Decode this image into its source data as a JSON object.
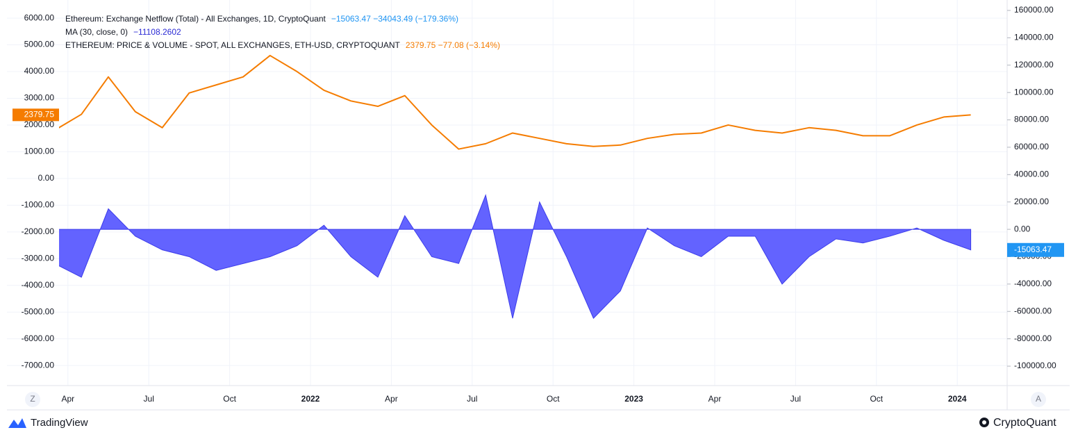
{
  "chart_data": {
    "type": "line-area",
    "series": [
      {
        "name": "Ethereum: Exchange Netflow (Total) - All Exchanges, 1D, CryptoQuant",
        "legend_stats": "−15063.47  −34043.49 (−179.36%)",
        "stats_color": "#2196f3",
        "color": "#5b5bff",
        "kind": "area",
        "axis": "y2",
        "values": [
          -25000,
          -35000,
          15000,
          -5000,
          -15000,
          -20000,
          -30000,
          -25000,
          -20000,
          -12000,
          3000,
          -20000,
          -35000,
          10000,
          -20000,
          -25000,
          25000,
          -65000,
          20000,
          -20000,
          -65000,
          -45000,
          1000,
          -12000,
          -20000,
          -5000,
          -5000,
          -40000,
          -20000,
          -7000,
          -10000,
          -5000,
          1000,
          -8000,
          -15063.47
        ]
      },
      {
        "name": "ETHEREUM: PRICE & VOLUME - SPOT, ALL EXCHANGES, ETH-USD, CRYPTOQUANT",
        "legend_stats": "2379.75  −77.08 (−3.14%)",
        "stats_color": "#f57c00",
        "color": "#f57c00",
        "kind": "line",
        "axis": "y",
        "values": [
          1800,
          2400,
          3800,
          2500,
          1900,
          3200,
          3500,
          3800,
          4600,
          4000,
          3300,
          2900,
          2700,
          3100,
          2000,
          1100,
          1300,
          1700,
          1500,
          1300,
          1200,
          1250,
          1500,
          1650,
          1700,
          2000,
          1800,
          1700,
          1900,
          1800,
          1600,
          1600,
          2000,
          2300,
          2379.75
        ]
      }
    ],
    "ma_legend": {
      "name": "MA (30, close, 0)",
      "value": "−11108.2602",
      "color": "#2a2ad4"
    },
    "categories": [
      "2021-03",
      "2021-04",
      "2021-05",
      "2021-06",
      "2021-07",
      "2021-08",
      "2021-09",
      "2021-10",
      "2021-11",
      "2021-12",
      "2022-01",
      "2022-02",
      "2022-03",
      "2022-04",
      "2022-05",
      "2022-06",
      "2022-07",
      "2022-08",
      "2022-09",
      "2022-10",
      "2022-11",
      "2022-12",
      "2023-01",
      "2023-02",
      "2023-03",
      "2023-04",
      "2023-05",
      "2023-06",
      "2023-07",
      "2023-08",
      "2023-09",
      "2023-10",
      "2023-11",
      "2023-12",
      "2024-01"
    ],
    "xticks": [
      {
        "value": "2021-04",
        "label": "Apr"
      },
      {
        "value": "2021-07",
        "label": "Jul"
      },
      {
        "value": "2021-10",
        "label": "Oct"
      },
      {
        "value": "2022-01",
        "label": "2022"
      },
      {
        "value": "2022-04",
        "label": "Apr"
      },
      {
        "value": "2022-07",
        "label": "Jul"
      },
      {
        "value": "2022-10",
        "label": "Oct"
      },
      {
        "value": "2023-01",
        "label": "2023"
      },
      {
        "value": "2023-04",
        "label": "Apr"
      },
      {
        "value": "2023-07",
        "label": "Jul"
      },
      {
        "value": "2023-10",
        "label": "Oct"
      },
      {
        "value": "2024-01",
        "label": "2024"
      }
    ],
    "ylim": [
      -7750,
      6470
    ],
    "yticks": [
      {
        "value": 6000,
        "label": "6000.00"
      },
      {
        "value": 5000,
        "label": "5000.00"
      },
      {
        "value": 4000,
        "label": "4000.00"
      },
      {
        "value": 3000,
        "label": "3000.00"
      },
      {
        "value": 2000,
        "label": "2000.00"
      },
      {
        "value": 1000,
        "label": "1000.00"
      },
      {
        "value": 0,
        "label": "0.00"
      },
      {
        "value": -1000,
        "label": "-1000.00"
      },
      {
        "value": -2000,
        "label": "-2000.00"
      },
      {
        "value": -3000,
        "label": "-3000.00"
      },
      {
        "value": -4000,
        "label": "-4000.00"
      },
      {
        "value": -5000,
        "label": "-5000.00"
      },
      {
        "value": -6000,
        "label": "-6000.00"
      },
      {
        "value": -7000,
        "label": "-7000.00"
      }
    ],
    "y2lim": [
      -114200,
      163550
    ],
    "y2ticks": [
      {
        "value": 160000,
        "label": "160000.00"
      },
      {
        "value": 140000,
        "label": "140000.00"
      },
      {
        "value": 120000,
        "label": "120000.00"
      },
      {
        "value": 100000,
        "label": "100000.00"
      },
      {
        "value": 80000,
        "label": "80000.00"
      },
      {
        "value": 60000,
        "label": "60000.00"
      },
      {
        "value": 40000,
        "label": "40000.00"
      },
      {
        "value": 20000,
        "label": "20000.00"
      },
      {
        "value": 0,
        "label": "0.00"
      },
      {
        "value": -20000,
        "label": "-20000.00"
      },
      {
        "value": -40000,
        "label": "-40000.00"
      },
      {
        "value": -60000,
        "label": "-60000.00"
      },
      {
        "value": -80000,
        "label": "-80000.00"
      },
      {
        "value": -100000,
        "label": "-100000.00"
      }
    ],
    "grid": true,
    "left_button": "Z",
    "right_button": "A",
    "brand_left": "TradingView",
    "brand_right": "CryptoQuant"
  }
}
